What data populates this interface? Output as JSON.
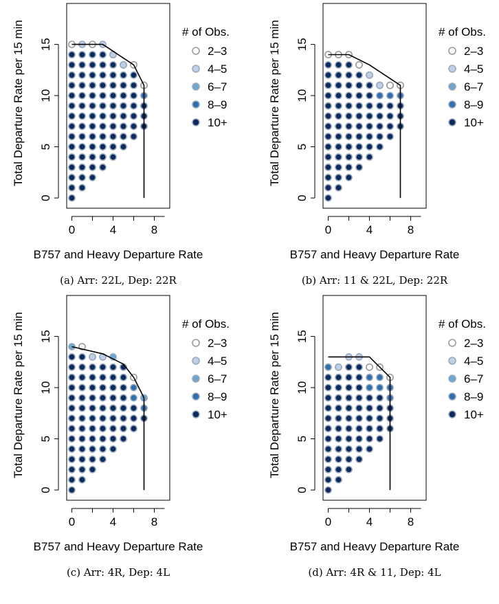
{
  "legend": {
    "title": "# of Obs.",
    "items": [
      {
        "label": "2–3",
        "fill": "#ffffff",
        "stroke": "#9a9a9a"
      },
      {
        "label": "4–5",
        "fill": "#bdd0e6",
        "stroke": "#9aa9bb"
      },
      {
        "label": "6–7",
        "fill": "#6fa6cd",
        "stroke": "#9aa9bb"
      },
      {
        "label": "8–9",
        "fill": "#2f6fb0",
        "stroke": "#9aa9bb"
      },
      {
        "label": "10+",
        "fill": "#0b2a5e",
        "stroke": "#9aa9bb"
      }
    ]
  },
  "chart_data": [
    {
      "type": "scatter",
      "caption": "(a) Arr: 22L, Dep: 22R",
      "xlabel": "B757 and Heavy Departure Rate",
      "ylabel": "Total Departure Rate per 15 min",
      "xlim": [
        -0.5,
        9.5
      ],
      "ylim": [
        -1,
        19
      ],
      "xticks": [
        0,
        4,
        8
      ],
      "yticks": [
        0,
        5,
        10,
        15
      ],
      "column_max_y": [
        14,
        14,
        14,
        14,
        14,
        13,
        12,
        11
      ],
      "top_row_categories": [
        [
          15,
          "2-3"
        ],
        [
          15,
          "4-5"
        ],
        [
          15,
          "2-3"
        ],
        [
          15,
          "4-5"
        ],
        [
          14,
          "4-5"
        ],
        [
          13,
          "4-5"
        ],
        [
          13,
          "2-3"
        ],
        [
          11,
          "2-3"
        ]
      ],
      "capacity_envelope": [
        [
          0,
          15
        ],
        [
          3,
          15
        ],
        [
          6,
          13
        ],
        [
          7,
          11
        ],
        [
          7,
          0
        ]
      ]
    },
    {
      "type": "scatter",
      "caption": "(b) Arr: 11 & 22L, Dep: 22R",
      "xlabel": "B757 and Heavy Departure Rate",
      "ylabel": "Total Departure Rate per 15 min",
      "xlim": [
        -0.5,
        9.5
      ],
      "ylim": [
        -1,
        19
      ],
      "xticks": [
        0,
        4,
        8
      ],
      "yticks": [
        0,
        5,
        10,
        15
      ],
      "column_max_y": [
        13,
        13,
        13,
        13,
        12,
        11,
        11,
        11
      ],
      "top_row_categories": [
        [
          14,
          "2-3"
        ],
        [
          14,
          "2-3"
        ],
        [
          14,
          "2-3"
        ],
        [
          13,
          "2-3"
        ],
        [
          12,
          "4-5"
        ],
        [
          11,
          "4-5"
        ],
        [
          11,
          "2-3"
        ],
        [
          11,
          "2-3"
        ]
      ],
      "capacity_envelope": [
        [
          0,
          14
        ],
        [
          2,
          14
        ],
        [
          4,
          13
        ],
        [
          7,
          11
        ],
        [
          7,
          0
        ]
      ]
    },
    {
      "type": "scatter",
      "caption": "(c) Arr: 4R, Dep: 4L",
      "xlabel": "B757 and Heavy Departure Rate",
      "ylabel": "Total Departure Rate per 15 min",
      "xlim": [
        -0.5,
        9.5
      ],
      "ylim": [
        -1,
        19
      ],
      "xticks": [
        0,
        4,
        8
      ],
      "yticks": [
        0,
        5,
        10,
        15
      ],
      "column_max_y": [
        13,
        13,
        13,
        13,
        12,
        12,
        10,
        9
      ],
      "top_row_categories": [
        [
          14,
          "6-7"
        ],
        [
          14,
          "2-3"
        ],
        [
          13,
          "4-5"
        ],
        [
          13,
          "4-5"
        ],
        [
          13,
          "6-7"
        ],
        [
          12,
          "10+"
        ],
        [
          11,
          "2-3"
        ],
        [
          9,
          "6-7"
        ]
      ],
      "capacity_envelope": [
        [
          0,
          14
        ],
        [
          3,
          13.3
        ],
        [
          5,
          12.3
        ],
        [
          6,
          11
        ],
        [
          7,
          9
        ],
        [
          7,
          0
        ]
      ]
    },
    {
      "type": "scatter",
      "caption": "(d) Arr: 4R & 11, Dep: 4L",
      "xlabel": "B757 and Heavy Departure Rate",
      "ylabel": "Total Departure Rate per 15 min",
      "xlim": [
        -0.5,
        9.5
      ],
      "ylim": [
        -1,
        19
      ],
      "xticks": [
        0,
        4,
        8
      ],
      "yticks": [
        0,
        5,
        10,
        15
      ],
      "column_max_y": [
        12,
        12,
        12,
        12,
        11,
        11,
        10
      ],
      "top_row_categories": [
        [
          12,
          "8-9"
        ],
        [
          12,
          "4-5"
        ],
        [
          13,
          "4-5"
        ],
        [
          13,
          "4-5"
        ],
        [
          12,
          "2-3"
        ],
        [
          12,
          "2-3"
        ],
        [
          11,
          "2-3"
        ]
      ],
      "capacity_envelope": [
        [
          0,
          13
        ],
        [
          4,
          13
        ],
        [
          6,
          11
        ],
        [
          6,
          0
        ]
      ]
    }
  ]
}
